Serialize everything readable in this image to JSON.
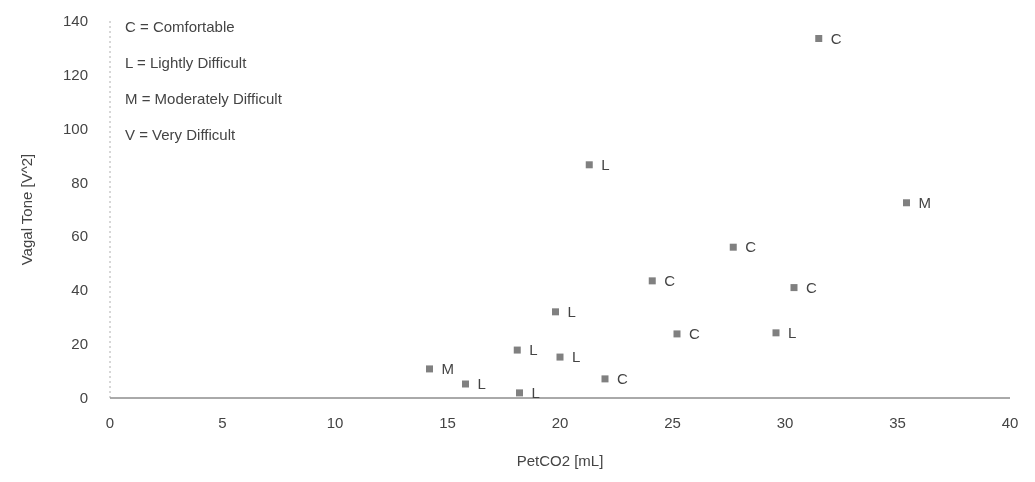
{
  "chart_data": {
    "type": "scatter",
    "xlabel": "PetCO2 [mL]",
    "ylabel": "Vagal Tone [V^2]",
    "xlim": [
      0,
      40
    ],
    "xticks": [
      0,
      5,
      10,
      15,
      20,
      25,
      30,
      35,
      40
    ],
    "ylim": [
      0,
      140
    ],
    "yticks": [
      0,
      20,
      40,
      60,
      80,
      100,
      120,
      140
    ],
    "grid": false,
    "marker": "square",
    "annotations": [
      "C = Comfortable",
      "L = Lightly Difficult",
      "M = Moderately Difficult",
      "V = Very Difficult"
    ],
    "series": [
      {
        "color": "#808080",
        "x": [
          31.5,
          21.3,
          35.4,
          27.7,
          24.1,
          30.4,
          19.8,
          25.2,
          29.6,
          18.1,
          20.0,
          14.2,
          15.8,
          18.2,
          22.0
        ],
        "values": [
          133.5,
          86.6,
          72.5,
          56,
          43.5,
          41,
          32,
          23.8,
          24.2,
          17.8,
          15.2,
          10.8,
          5.2,
          1.9,
          7.1
        ],
        "value_labels": [
          "C",
          "L",
          "M",
          "C",
          "C",
          "C",
          "L",
          "C",
          "L",
          "L",
          "L",
          "M",
          "L",
          "L",
          "C"
        ]
      }
    ]
  }
}
